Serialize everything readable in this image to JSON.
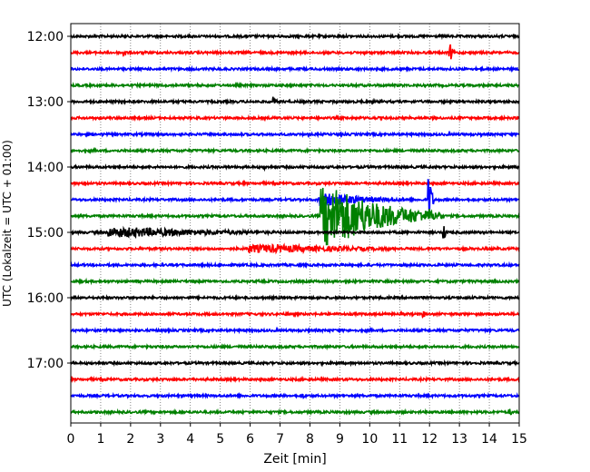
{
  "chart_data": {
    "type": "line",
    "xlabel": "Zeit  [min]",
    "ylabel": "UTC (Lokalzeit = UTC + 01:00)",
    "xlim": [
      0,
      15
    ],
    "x_ticks": [
      "0",
      "1",
      "2",
      "3",
      "4",
      "5",
      "6",
      "7",
      "8",
      "9",
      "10",
      "11",
      "12",
      "13",
      "14",
      "15"
    ],
    "y_ticks": [
      "12:00",
      "13:00",
      "14:00",
      "15:00",
      "16:00",
      "17:00"
    ],
    "grid": "vertical dotted",
    "trace_interval_minutes": 15,
    "first_trace": "12:00",
    "trace_count": 24,
    "trace_colors": [
      "#000000",
      "#ff0000",
      "#0000ff",
      "#008000"
    ],
    "events": [
      {
        "trace": "12:15",
        "minute": 1.8,
        "amplitude": 0.2
      },
      {
        "trace": "12:15",
        "minute": 12.7,
        "amplitude": 0.5
      },
      {
        "trace": "13:00",
        "minute": 6.8,
        "amplitude": 0.3
      },
      {
        "trace": "14:00",
        "minute": 6.5,
        "amplitude": 0.15
      },
      {
        "trace": "14:15",
        "minute": 0.5,
        "amplitude": 0.2
      },
      {
        "trace": "14:30",
        "minute": 8.3,
        "amplitude": 0.4,
        "duration": 3.5
      },
      {
        "trace": "14:30",
        "minute": 12.0,
        "amplitude": 1.5
      },
      {
        "trace": "14:45",
        "minute": 8.4,
        "amplitude": 1.8,
        "duration": 4.0
      },
      {
        "trace": "14:45",
        "minute": 12.0,
        "amplitude": 0.5
      },
      {
        "trace": "15:00",
        "minute": 1.3,
        "amplitude": 0.3,
        "duration": 8.0
      },
      {
        "trace": "15:00",
        "minute": 12.5,
        "amplitude": 0.4
      },
      {
        "trace": "15:15",
        "minute": 6.0,
        "amplitude": 0.25,
        "duration": 8.0
      },
      {
        "trace": "16:15",
        "minute": 11.8,
        "amplitude": 0.2
      },
      {
        "trace": "17:30",
        "minute": 7.8,
        "amplitude": 0.15
      },
      {
        "trace": "17:45",
        "minute": 14.7,
        "amplitude": 0.2
      }
    ]
  }
}
